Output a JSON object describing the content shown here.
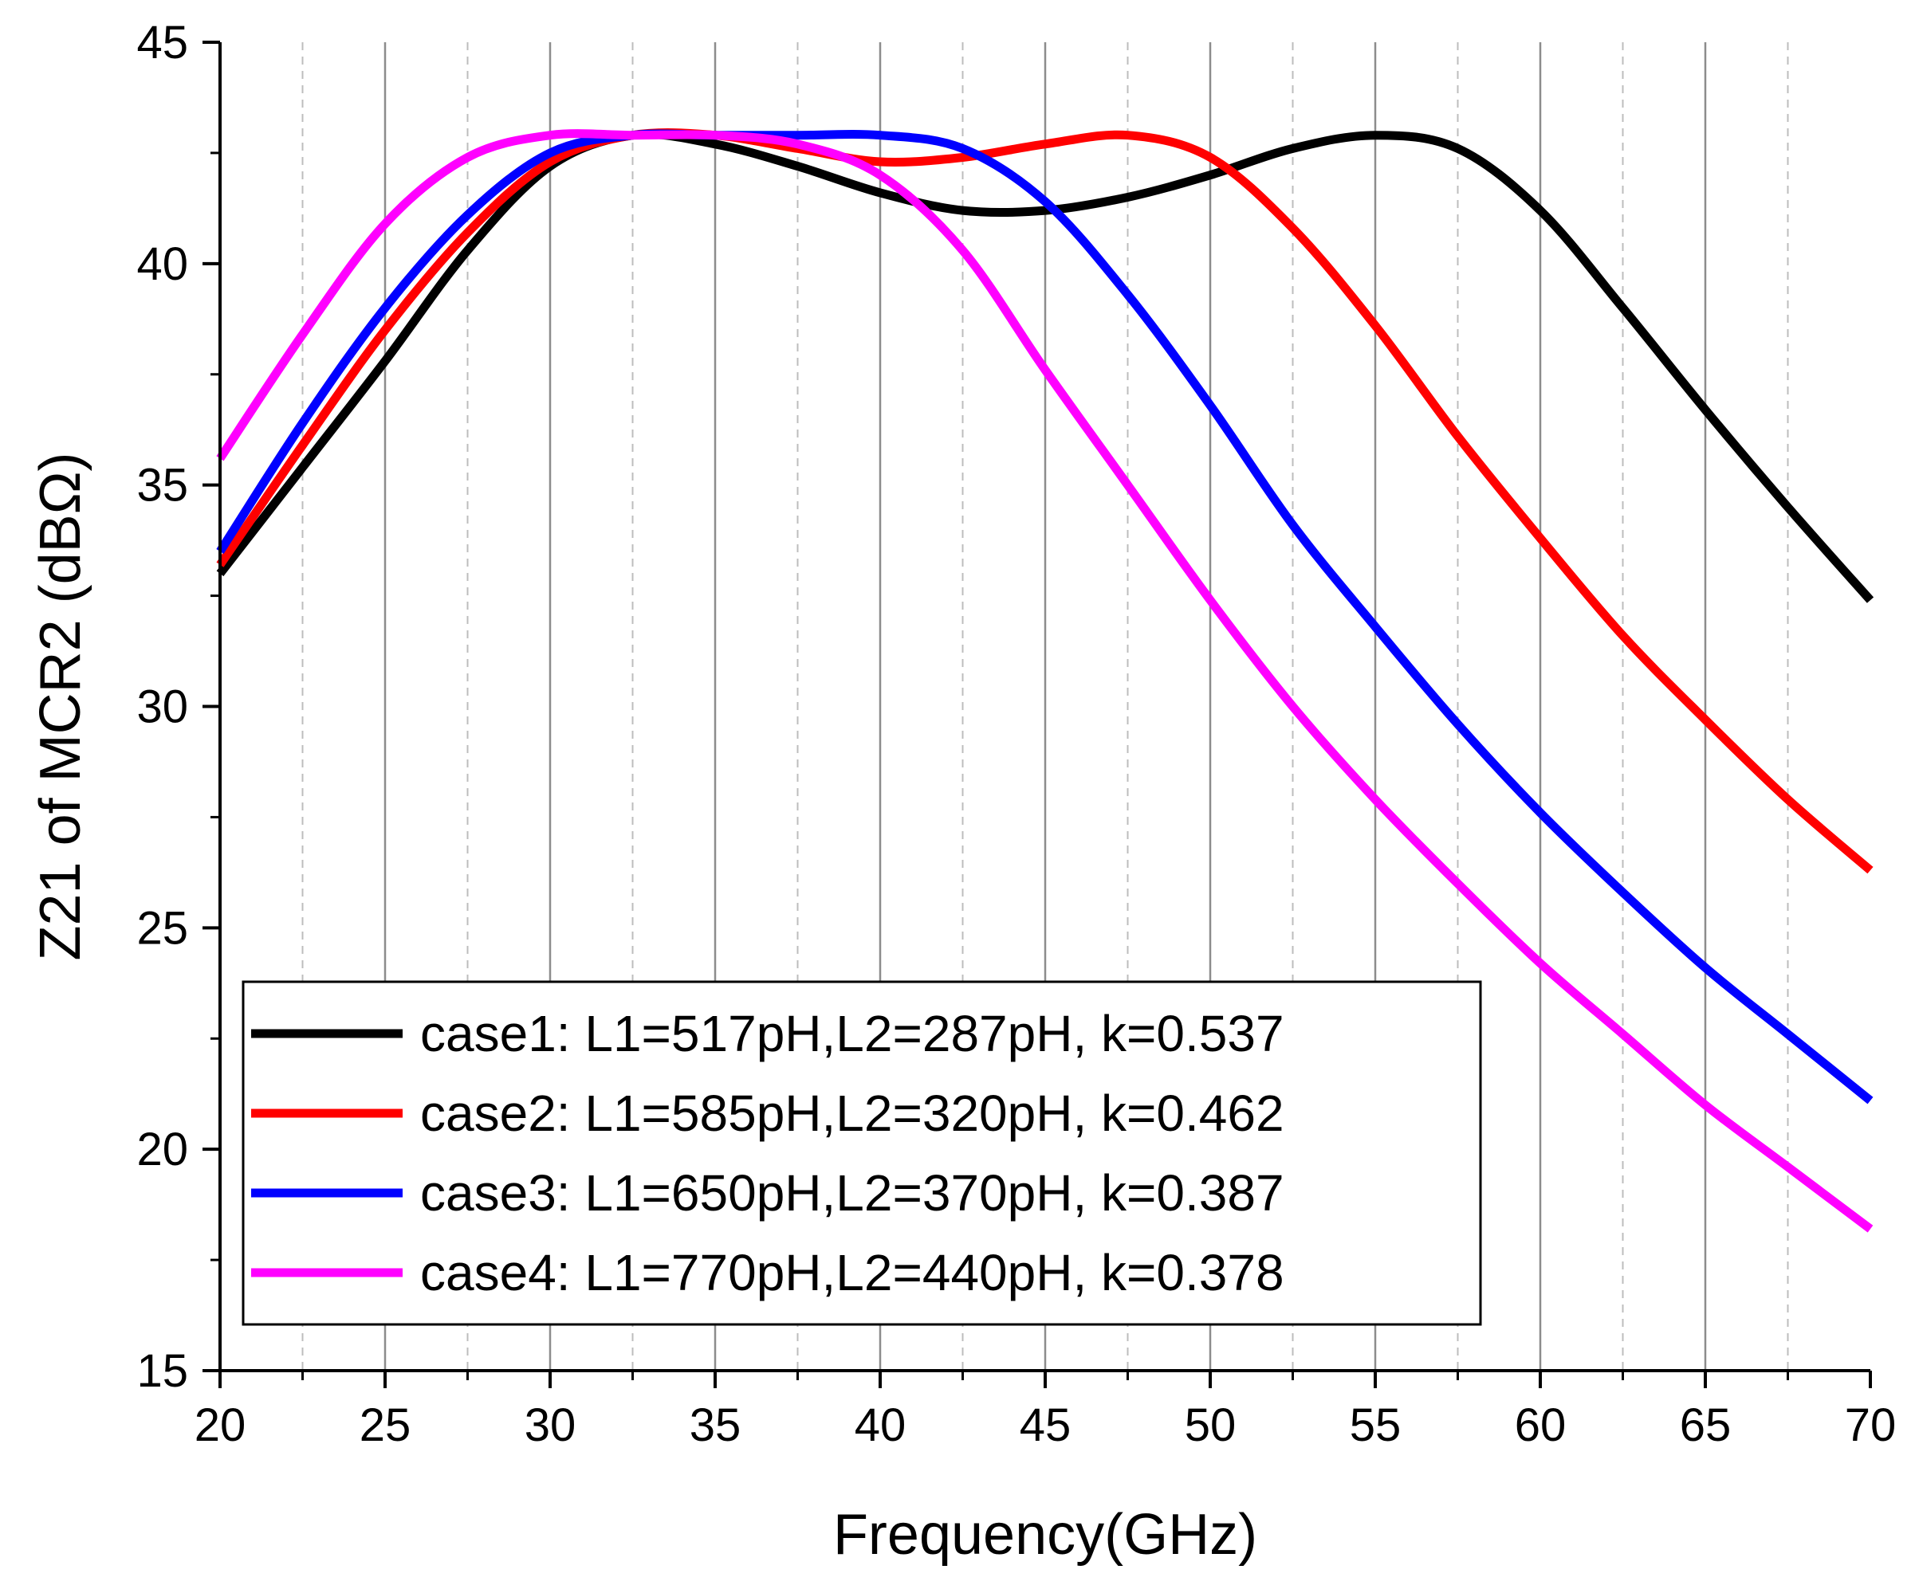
{
  "chart_data": {
    "type": "line",
    "title": "",
    "xlabel": "Frequency(GHz)",
    "ylabel": "Z21 of MCR2 (dBΩ)",
    "xlim": [
      20,
      70
    ],
    "ylim": [
      15,
      45
    ],
    "xticks": [
      20,
      25,
      30,
      35,
      40,
      45,
      50,
      55,
      60,
      65,
      70
    ],
    "yticks": [
      15,
      20,
      25,
      30,
      35,
      40,
      45
    ],
    "xtick_labels": [
      "20",
      "25",
      "30",
      "35",
      "40",
      "45",
      "50",
      "55",
      "60",
      "65",
      "70"
    ],
    "ytick_labels": [
      "15",
      "20",
      "25",
      "30",
      "35",
      "40",
      "45"
    ],
    "grid": "vertical",
    "legend_position": "bottom-left",
    "series": [
      {
        "name": "case1: L1=517pH,L2=287pH, k=0.537",
        "color": "#000000",
        "x": [
          20,
          22.5,
          25,
          27.5,
          30,
          32.5,
          35,
          37.5,
          40,
          42.5,
          45,
          47.5,
          50,
          52.5,
          55,
          57.5,
          60,
          62.5,
          65,
          67.5,
          70
        ],
        "y": [
          33.0,
          35.4,
          37.8,
          40.3,
          42.2,
          42.9,
          42.7,
          42.2,
          41.6,
          41.2,
          41.2,
          41.5,
          42.0,
          42.6,
          42.9,
          42.6,
          41.2,
          39.0,
          36.7,
          34.5,
          32.4
        ]
      },
      {
        "name": "case2: L1=585pH,L2=320pH, k=0.462",
        "color": "#ff0000",
        "x": [
          20,
          22.5,
          25,
          27.5,
          30,
          32.5,
          35,
          37.5,
          40,
          42.5,
          45,
          47.5,
          50,
          52.5,
          55,
          57.5,
          60,
          62.5,
          65,
          67.5,
          70
        ],
        "y": [
          33.2,
          35.9,
          38.5,
          40.7,
          42.3,
          42.9,
          42.9,
          42.6,
          42.3,
          42.4,
          42.7,
          42.9,
          42.4,
          40.8,
          38.6,
          36.1,
          33.8,
          31.6,
          29.7,
          27.9,
          26.3
        ]
      },
      {
        "name": "case3: L1=650pH,L2=370pH, k=0.387",
        "color": "#0000ff",
        "x": [
          20,
          22.5,
          25,
          27.5,
          30,
          32.5,
          35,
          37.5,
          40,
          42.5,
          45,
          47.5,
          50,
          52.5,
          55,
          57.5,
          60,
          62.5,
          65,
          67.5,
          70
        ],
        "y": [
          33.5,
          36.4,
          39.0,
          41.1,
          42.5,
          42.9,
          42.9,
          42.9,
          42.9,
          42.6,
          41.4,
          39.3,
          36.8,
          34.1,
          31.8,
          29.6,
          27.6,
          25.8,
          24.1,
          22.6,
          21.1
        ]
      },
      {
        "name": "case4: L1=770pH,L2=440pH, k=0.378",
        "color": "#ff00ff",
        "x": [
          20,
          22.5,
          25,
          27.5,
          30,
          32.5,
          35,
          37.5,
          40,
          42.5,
          45,
          47.5,
          50,
          52.5,
          55,
          57.5,
          60,
          62.5,
          65,
          67.5,
          70
        ],
        "y": [
          35.6,
          38.4,
          40.9,
          42.4,
          42.9,
          42.9,
          42.9,
          42.7,
          42.0,
          40.3,
          37.6,
          35.0,
          32.4,
          30.0,
          27.9,
          26.0,
          24.2,
          22.6,
          21.0,
          19.6,
          18.2
        ]
      }
    ]
  }
}
